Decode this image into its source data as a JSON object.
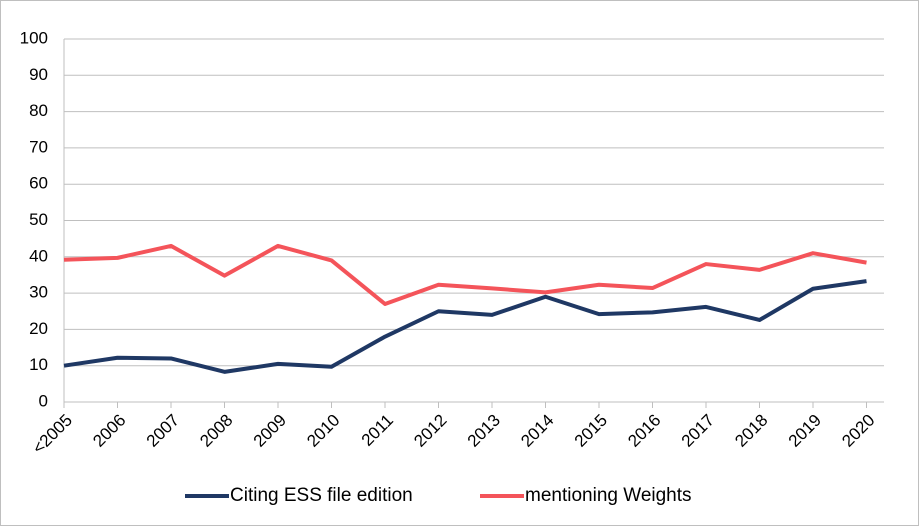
{
  "chart_data": {
    "type": "line",
    "categories": [
      "<2005",
      "2006",
      "2007",
      "2008",
      "2009",
      "2010",
      "2011",
      "2012",
      "2013",
      "2014",
      "2015",
      "2016",
      "2017",
      "2018",
      "2019",
      "2020"
    ],
    "series": [
      {
        "name": "Citing ESS file edition",
        "color": "#1f3864",
        "values": [
          10,
          12.2,
          12,
          8.3,
          10.5,
          9.7,
          18,
          25,
          24,
          29,
          24.2,
          24.7,
          26.2,
          22.6,
          31.2,
          33.3
        ]
      },
      {
        "name": "mentioning Weights",
        "color": "#f4545a",
        "values": [
          39.2,
          39.7,
          43,
          34.8,
          43,
          39,
          27,
          32.3,
          31.3,
          30.2,
          32.3,
          31.4,
          38,
          36.4,
          41,
          38.4
        ]
      }
    ],
    "ylim": [
      0,
      100
    ],
    "yticks": [
      0,
      10,
      20,
      30,
      40,
      50,
      60,
      70,
      80,
      90,
      100
    ],
    "grid": true,
    "legend": "bottom"
  }
}
